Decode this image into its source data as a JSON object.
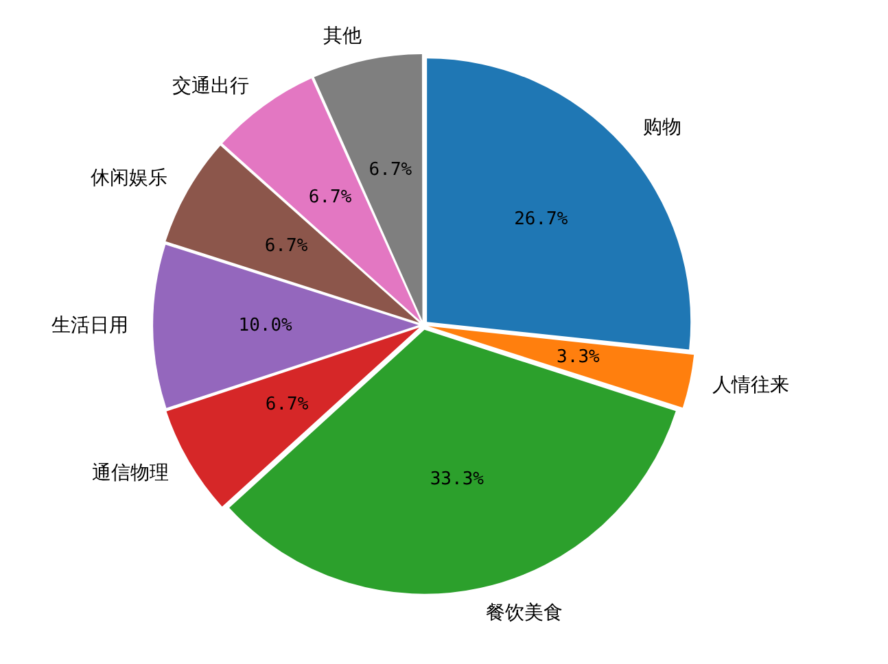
{
  "chart_data": {
    "type": "pie",
    "categories": [
      "购物",
      "人情往来",
      "餐饮美食",
      "通信物理",
      "生活日用",
      "休闲娱乐",
      "交通出行",
      "其他"
    ],
    "values": [
      26.7,
      3.3,
      33.3,
      6.7,
      10.0,
      6.7,
      6.7,
      6.7
    ],
    "value_labels": [
      "26.7%",
      "3.3%",
      "33.3%",
      "6.7%",
      "10.0%",
      "6.7%",
      "6.7%",
      "6.7%"
    ],
    "colors": [
      "#1f77b4",
      "#ff7f0e",
      "#2ca02c",
      "#d62728",
      "#9467bd",
      "#8c564b",
      "#e377c2",
      "#7f7f7f"
    ]
  }
}
